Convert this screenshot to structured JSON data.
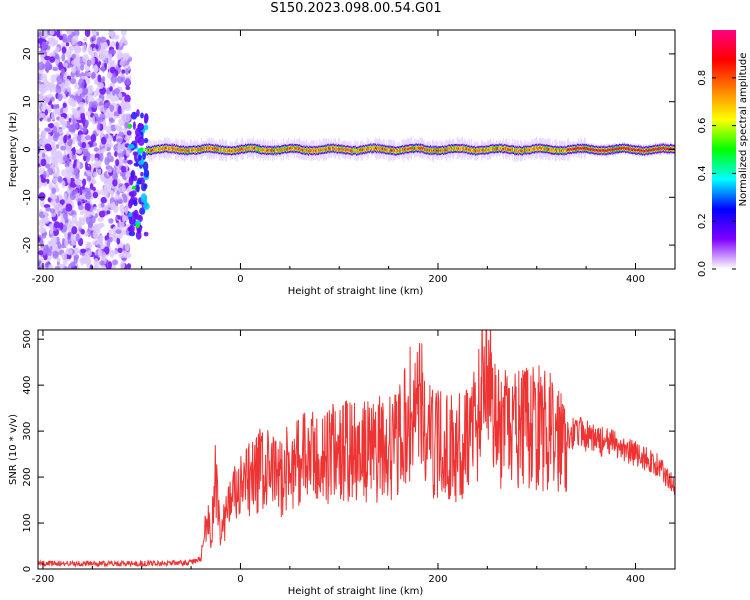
{
  "title": "S150.2023.098.00.54.G01",
  "chart_data": [
    {
      "type": "heatmap",
      "xlabel": "Height of straight line (km)",
      "ylabel": "Frequency (Hz)",
      "xlim": [
        -205,
        440
      ],
      "ylim": [
        -25,
        25
      ],
      "xticks": [
        -200,
        0,
        200,
        400
      ],
      "yticks": [
        -20,
        -10,
        0,
        10,
        20
      ],
      "colorbar": {
        "label": "Normalized spectral amplitude",
        "range": [
          0,
          1
        ],
        "ticks": [
          "0.0",
          "0.2",
          "0.4",
          "0.6",
          "0.8"
        ],
        "colormap": [
          "#ffffff",
          "#7f00ff",
          "#0000ff",
          "#00ffff",
          "#00ff00",
          "#ffff00",
          "#ff8000",
          "#ff0000",
          "#ff0080"
        ]
      },
      "regions": [
        {
          "x": [
            -205,
            -112
          ],
          "freq": [
            -25,
            25
          ],
          "amplitude": 0.1
        },
        {
          "x": [
            -112,
            -95
          ],
          "freq": [
            -18,
            8
          ],
          "amplitude": 0.3
        },
        {
          "x": [
            -95,
            440
          ],
          "freq": [
            -1,
            1
          ],
          "amplitude": 0.9
        }
      ],
      "ridge": [
        {
          "x": -112,
          "f": 5
        },
        {
          "x": -108,
          "f": -8
        },
        {
          "x": -104,
          "f": -16
        },
        {
          "x": -100,
          "f": 0
        },
        {
          "x": -95,
          "f": 0
        },
        {
          "x": 0,
          "f": 0
        },
        {
          "x": 100,
          "f": 0
        },
        {
          "x": 200,
          "f": 0
        },
        {
          "x": 300,
          "f": 0
        },
        {
          "x": 440,
          "f": 0
        }
      ]
    },
    {
      "type": "line",
      "xlabel": "Height of straight line (km)",
      "ylabel": "SNR (10 * v/v)",
      "xlim": [
        -205,
        440
      ],
      "ylim": [
        0,
        520
      ],
      "xticks": [
        -200,
        0,
        200,
        400
      ],
      "yticks": [
        0,
        100,
        200,
        300,
        400,
        500
      ],
      "color": "#ee3333",
      "series": [
        {
          "x": [
            -205,
            -150,
            -100,
            -50,
            -40,
            -33,
            -30,
            -25,
            -20,
            -10,
            0,
            20,
            40,
            60,
            80,
            100,
            120,
            140,
            160,
            180,
            190,
            200,
            220,
            240,
            250,
            260,
            280,
            300,
            320,
            340,
            360,
            380,
            400,
            420,
            440
          ],
          "y": [
            12,
            12,
            12,
            14,
            22,
            125,
            60,
            200,
            80,
            150,
            170,
            215,
            200,
            240,
            235,
            260,
            250,
            260,
            270,
            380,
            280,
            270,
            260,
            330,
            500,
            300,
            300,
            310,
            290,
            300,
            280,
            270,
            250,
            230,
            180
          ]
        }
      ]
    }
  ]
}
